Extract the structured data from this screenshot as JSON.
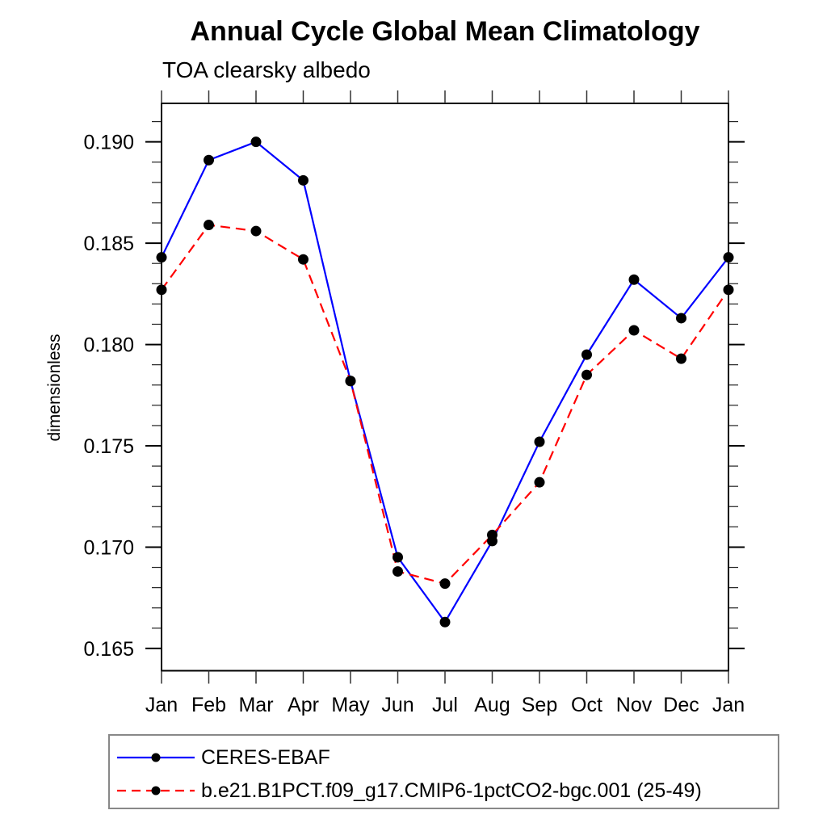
{
  "title": "Annual Cycle Global Mean Climatology",
  "subtitle": "TOA clearsky albedo",
  "y_axis_title": "dimensionless",
  "colors": {
    "series1_line": "#0000ff",
    "series2_line": "#ff0000",
    "marker_fill": "#000000",
    "axis": "#000000",
    "legend_border": "#888888",
    "background": "#ffffff"
  },
  "chart_data": {
    "type": "line",
    "title": "Annual Cycle Global Mean Climatology",
    "subtitle": "TOA clearsky albedo",
    "xlabel": "",
    "ylabel": "dimensionless",
    "categories": [
      "Jan",
      "Feb",
      "Mar",
      "Apr",
      "May",
      "Jun",
      "Jul",
      "Aug",
      "Sep",
      "Oct",
      "Nov",
      "Dec",
      "Jan"
    ],
    "series": [
      {
        "name": "CERES-EBAF",
        "color": "#0000ff",
        "line_style": "solid",
        "marker": "filled-circle",
        "values": [
          0.1843,
          0.1891,
          0.19,
          0.1881,
          0.1782,
          0.1695,
          0.1663,
          0.1703,
          0.1752,
          0.1795,
          0.1832,
          0.1813,
          0.1843
        ]
      },
      {
        "name": "b.e21.B1PCT.f09_g17.CMIP6-1pctCO2-bgc.001 (25-49)",
        "color": "#ff0000",
        "line_style": "dashed",
        "marker": "filled-circle",
        "values": [
          0.1827,
          0.1859,
          0.1856,
          0.1842,
          0.1782,
          0.1688,
          0.1682,
          0.1706,
          0.1732,
          0.1785,
          0.1807,
          0.1793,
          0.1827
        ]
      }
    ],
    "ylim": [
      0.1639,
      0.1919
    ],
    "yticks_major": [
      0.165,
      0.17,
      0.175,
      0.18,
      0.185,
      0.19
    ],
    "ytick_labels": [
      "0.165",
      "0.170",
      "0.175",
      "0.180",
      "0.185",
      "0.190"
    ],
    "minor_tick_step": 0.001,
    "grid": false,
    "legend_position": "bottom-left"
  },
  "legend": {
    "entries": [
      {
        "label": "CERES-EBAF"
      },
      {
        "label": "b.e21.B1PCT.f09_g17.CMIP6-1pctCO2-bgc.001 (25-49)"
      }
    ]
  }
}
